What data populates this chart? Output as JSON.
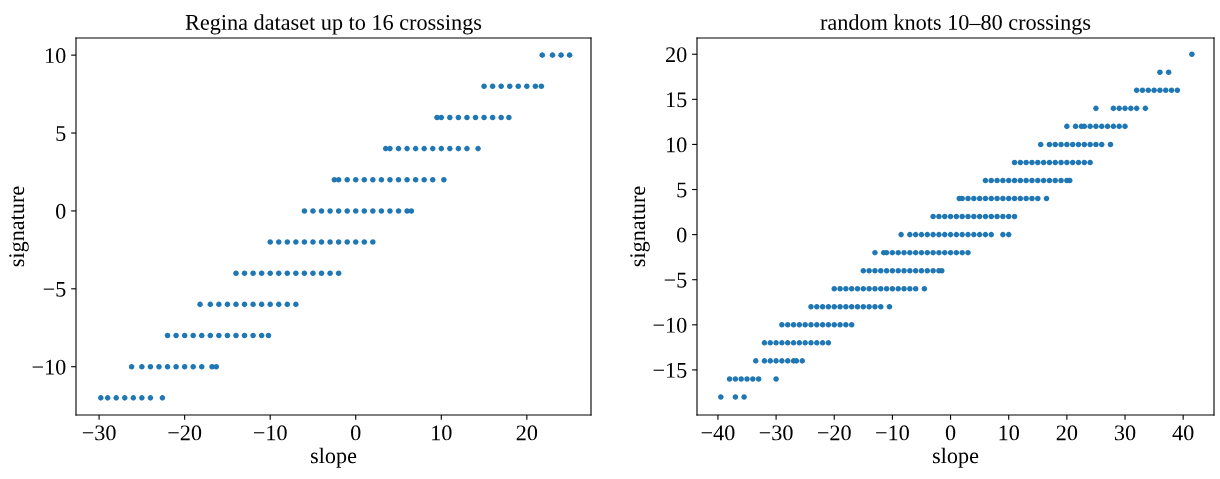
{
  "chart_data": [
    {
      "type": "scatter",
      "title": "Regina dataset up to 16 crossings",
      "xlabel": "slope",
      "ylabel": "signature",
      "xlim": [
        -32.7,
        27.5
      ],
      "ylim": [
        -13.1,
        11.1
      ],
      "xticks": [
        {
          "value": -30,
          "label": "−30"
        },
        {
          "value": -20,
          "label": "−20"
        },
        {
          "value": -10,
          "label": "−10"
        },
        0,
        10,
        20
      ],
      "yticks": [
        {
          "value": -10,
          "label": "−10"
        },
        {
          "value": -5,
          "label": "−5"
        },
        0,
        5,
        10
      ],
      "marker": "circle",
      "grid": false,
      "series": [
        {
          "color": "#1f77b4",
          "x": [
            -29.8,
            -29,
            -28,
            -27,
            -26,
            -25,
            -24,
            -22.6
          ],
          "values": [
            -12,
            -12,
            -12,
            -12,
            -12,
            -12,
            -12,
            -12
          ]
        },
        {
          "color": "#1f77b4",
          "x": [
            -26.2,
            -25,
            -24,
            -23,
            -22,
            -21,
            -20,
            -19,
            -18,
            -16.8,
            -16.3
          ],
          "values": [
            -10,
            -10,
            -10,
            -10,
            -10,
            -10,
            -10,
            -10,
            -10,
            -10,
            -10
          ]
        },
        {
          "color": "#1f77b4",
          "x": [
            -22,
            -21,
            -20,
            -19,
            -18,
            -17,
            -16,
            -15,
            -14,
            -13,
            -12,
            -11,
            -10.2
          ],
          "values": [
            -8,
            -8,
            -8,
            -8,
            -8,
            -8,
            -8,
            -8,
            -8,
            -8,
            -8,
            -8,
            -8
          ]
        },
        {
          "color": "#1f77b4",
          "x": [
            -18.2,
            -17,
            -16,
            -15,
            -14,
            -13,
            -12,
            -11,
            -10,
            -9,
            -8,
            -7
          ],
          "values": [
            -6,
            -6,
            -6,
            -6,
            -6,
            -6,
            -6,
            -6,
            -6,
            -6,
            -6,
            -6
          ]
        },
        {
          "color": "#1f77b4",
          "x": [
            -14,
            -13,
            -12,
            -11,
            -10,
            -9,
            -8,
            -7,
            -6,
            -5,
            -4,
            -3,
            -2
          ],
          "values": [
            -4,
            -4,
            -4,
            -4,
            -4,
            -4,
            -4,
            -4,
            -4,
            -4,
            -4,
            -4,
            -4
          ]
        },
        {
          "color": "#1f77b4",
          "x": [
            -10,
            -9,
            -8,
            -7,
            -6,
            -5,
            -4,
            -3,
            -2,
            -1,
            0,
            1,
            2
          ],
          "values": [
            -2,
            -2,
            -2,
            -2,
            -2,
            -2,
            -2,
            -2,
            -2,
            -2,
            -2,
            -2,
            -2
          ]
        },
        {
          "color": "#1f77b4",
          "x": [
            -6,
            -5,
            -4,
            -3,
            -2,
            -1,
            0,
            1,
            2,
            3,
            4,
            5,
            6,
            6.5
          ],
          "values": [
            0,
            0,
            0,
            0,
            0,
            0,
            0,
            0,
            0,
            0,
            0,
            0,
            0,
            0
          ]
        },
        {
          "color": "#1f77b4",
          "x": [
            -2.5,
            -2,
            -1,
            0,
            1,
            2,
            3,
            4,
            5,
            6,
            7,
            8,
            9,
            10.3
          ],
          "values": [
            2,
            2,
            2,
            2,
            2,
            2,
            2,
            2,
            2,
            2,
            2,
            2,
            2,
            2
          ]
        },
        {
          "color": "#1f77b4",
          "x": [
            3.5,
            4,
            5,
            6,
            7,
            8,
            9,
            10,
            11,
            12,
            13,
            14.3
          ],
          "values": [
            4,
            4,
            4,
            4,
            4,
            4,
            4,
            4,
            4,
            4,
            4,
            4
          ]
        },
        {
          "color": "#1f77b4",
          "x": [
            9.5,
            10,
            11,
            12,
            13,
            14,
            15,
            16,
            17,
            17.9
          ],
          "values": [
            6,
            6,
            6,
            6,
            6,
            6,
            6,
            6,
            6,
            6
          ]
        },
        {
          "color": "#1f77b4",
          "x": [
            15,
            16,
            17,
            18,
            19,
            20,
            21,
            21.7
          ],
          "values": [
            8,
            8,
            8,
            8,
            8,
            8,
            8,
            8
          ]
        },
        {
          "color": "#1f77b4",
          "x": [
            21.8,
            23,
            24,
            25
          ],
          "values": [
            10,
            10,
            10,
            10
          ]
        }
      ]
    },
    {
      "type": "scatter",
      "title": "random knots 10–80 crossings",
      "xlabel": "slope",
      "ylabel": "signature",
      "xlim": [
        -43.6,
        45.3
      ],
      "ylim": [
        -20,
        21.8
      ],
      "xticks": [
        {
          "value": -40,
          "label": "−40"
        },
        {
          "value": -30,
          "label": "−30"
        },
        {
          "value": -20,
          "label": "−20"
        },
        {
          "value": -10,
          "label": "−10"
        },
        0,
        10,
        20,
        30,
        40
      ],
      "yticks": [
        {
          "value": -15,
          "label": "−15"
        },
        {
          "value": -10,
          "label": "−10"
        },
        {
          "value": -5,
          "label": "−5"
        },
        0,
        5,
        10,
        15,
        20
      ],
      "marker": "circle",
      "grid": false,
      "series": [
        {
          "color": "#1f77b4",
          "x": [
            -39.5,
            -37,
            -35.5
          ],
          "values": [
            -18,
            -18,
            -18
          ]
        },
        {
          "color": "#1f77b4",
          "x": [
            -38,
            -37,
            -36,
            -35,
            -34,
            -33,
            -30
          ],
          "values": [
            -16,
            -16,
            -16,
            -16,
            -16,
            -16,
            -16
          ]
        },
        {
          "color": "#1f77b4",
          "x": [
            -33.5,
            -32,
            -31,
            -30,
            -29,
            -28,
            -27,
            -26.5,
            -25.5
          ],
          "values": [
            -14,
            -14,
            -14,
            -14,
            -14,
            -14,
            -14,
            -14,
            -14
          ]
        },
        {
          "color": "#1f77b4",
          "x": [
            -32,
            -31,
            -30,
            -29,
            -28,
            -27,
            -26,
            -25,
            -24,
            -23,
            -22,
            -21
          ],
          "values": [
            -12,
            -12,
            -12,
            -12,
            -12,
            -12,
            -12,
            -12,
            -12,
            -12,
            -12,
            -12
          ]
        },
        {
          "color": "#1f77b4",
          "x": [
            -29,
            -28,
            -27,
            -26,
            -25,
            -24,
            -23,
            -22,
            -21,
            -20,
            -19,
            -18,
            -17
          ],
          "values": [
            -10,
            -10,
            -10,
            -10,
            -10,
            -10,
            -10,
            -10,
            -10,
            -10,
            -10,
            -10,
            -10
          ]
        },
        {
          "color": "#1f77b4",
          "x": [
            -24,
            -23,
            -22,
            -21,
            -20,
            -19,
            -18,
            -17,
            -16,
            -15,
            -14,
            -13,
            -12,
            -10.5
          ],
          "values": [
            -8,
            -8,
            -8,
            -8,
            -8,
            -8,
            -8,
            -8,
            -8,
            -8,
            -8,
            -8,
            -8,
            -8
          ]
        },
        {
          "color": "#1f77b4",
          "x": [
            -20,
            -19,
            -18,
            -17,
            -16,
            -15,
            -14,
            -13,
            -12,
            -11,
            -10,
            -9,
            -8,
            -7,
            -6,
            -4.5
          ],
          "values": [
            -6,
            -6,
            -6,
            -6,
            -6,
            -6,
            -6,
            -6,
            -6,
            -6,
            -6,
            -6,
            -6,
            -6,
            -6,
            -6
          ]
        },
        {
          "color": "#1f77b4",
          "x": [
            -15,
            -14,
            -13,
            -12,
            -11,
            -10,
            -9,
            -8,
            -7,
            -6,
            -5,
            -4,
            -3,
            -2,
            -1.5
          ],
          "values": [
            -4,
            -4,
            -4,
            -4,
            -4,
            -4,
            -4,
            -4,
            -4,
            -4,
            -4,
            -4,
            -4,
            -4,
            -4
          ]
        },
        {
          "color": "#1f77b4",
          "x": [
            -13,
            -11.5,
            -11,
            -10,
            -9,
            -8,
            -7,
            -6,
            -5,
            -4,
            -3,
            -2,
            -1,
            0,
            1,
            2,
            3
          ],
          "values": [
            -2,
            -2,
            -2,
            -2,
            -2,
            -2,
            -2,
            -2,
            -2,
            -2,
            -2,
            -2,
            -2,
            -2,
            -2,
            -2,
            -2
          ]
        },
        {
          "color": "#1f77b4",
          "x": [
            -8.5,
            -7,
            -6,
            -5,
            -4,
            -3,
            -2,
            -1,
            0,
            1,
            2,
            3,
            4,
            5,
            6,
            7,
            9,
            10
          ],
          "values": [
            0,
            0,
            0,
            0,
            0,
            0,
            0,
            0,
            0,
            0,
            0,
            0,
            0,
            0,
            0,
            0,
            0,
            0
          ]
        },
        {
          "color": "#1f77b4",
          "x": [
            -3,
            -2,
            -1,
            0,
            1,
            2,
            3,
            4,
            5,
            6,
            7,
            8,
            9,
            10,
            11
          ],
          "values": [
            2,
            2,
            2,
            2,
            2,
            2,
            2,
            2,
            2,
            2,
            2,
            2,
            2,
            2,
            2
          ]
        },
        {
          "color": "#1f77b4",
          "x": [
            1.5,
            2,
            3,
            4,
            5,
            6,
            7,
            8,
            9,
            10,
            11,
            12,
            13,
            14,
            15,
            16.5
          ],
          "values": [
            4,
            4,
            4,
            4,
            4,
            4,
            4,
            4,
            4,
            4,
            4,
            4,
            4,
            4,
            4,
            4
          ]
        },
        {
          "color": "#1f77b4",
          "x": [
            6,
            7,
            8,
            9,
            10,
            11,
            12,
            13,
            14,
            15,
            16,
            17,
            18,
            19,
            20,
            20.5
          ],
          "values": [
            6,
            6,
            6,
            6,
            6,
            6,
            6,
            6,
            6,
            6,
            6,
            6,
            6,
            6,
            6,
            6
          ]
        },
        {
          "color": "#1f77b4",
          "x": [
            11,
            12,
            13,
            14,
            15,
            16,
            17,
            18,
            19,
            20,
            21,
            22,
            23,
            24
          ],
          "values": [
            8,
            8,
            8,
            8,
            8,
            8,
            8,
            8,
            8,
            8,
            8,
            8,
            8,
            8
          ]
        },
        {
          "color": "#1f77b4",
          "x": [
            15.5,
            17,
            18,
            19,
            20,
            21,
            22,
            23,
            24,
            25,
            26,
            27.5
          ],
          "values": [
            10,
            10,
            10,
            10,
            10,
            10,
            10,
            10,
            10,
            10,
            10,
            10
          ]
        },
        {
          "color": "#1f77b4",
          "x": [
            20,
            21.5,
            22.5,
            23,
            24,
            25,
            26,
            27,
            28,
            29,
            30
          ],
          "values": [
            12,
            12,
            12,
            12,
            12,
            12,
            12,
            12,
            12,
            12,
            12
          ]
        },
        {
          "color": "#1f77b4",
          "x": [
            25,
            28,
            29,
            30,
            31,
            32,
            33.5
          ],
          "values": [
            14,
            14,
            14,
            14,
            14,
            14,
            14
          ]
        },
        {
          "color": "#1f77b4",
          "x": [
            32,
            33,
            34,
            35,
            36,
            37,
            38,
            39
          ],
          "values": [
            16,
            16,
            16,
            16,
            16,
            16,
            16,
            16
          ]
        },
        {
          "color": "#1f77b4",
          "x": [
            36,
            37.5
          ],
          "values": [
            18,
            18
          ]
        },
        {
          "color": "#1f77b4",
          "x": [
            41.5
          ],
          "values": [
            20
          ]
        }
      ]
    }
  ]
}
